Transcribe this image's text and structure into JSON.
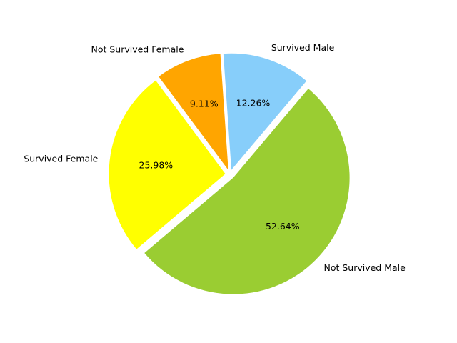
{
  "chart_data": {
    "type": "pie",
    "slices": [
      {
        "label": "Survived Male",
        "value": 12.26,
        "pct_text": "12.26%",
        "color": "#87CEFA"
      },
      {
        "label": "Not Survived Female",
        "value": 9.11,
        "pct_text": "9.11%",
        "color": "#FFA500"
      },
      {
        "label": "Survived Female",
        "value": 25.98,
        "pct_text": "25.98%",
        "color": "#FFFF00"
      },
      {
        "label": "Not Survived Male",
        "value": 52.64,
        "pct_text": "52.64%",
        "color": "#9ACD32"
      }
    ],
    "start_angle_deg": 49.8,
    "direction": "counterclockwise",
    "exploded": true,
    "legend": "none"
  }
}
